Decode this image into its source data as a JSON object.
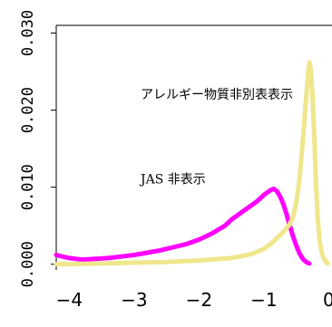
{
  "chart_data": {
    "type": "line",
    "title": "",
    "xlabel": "",
    "ylabel": "",
    "xlim": [
      -4.2,
      0.05
    ],
    "ylim": [
      -0.0005,
      0.031
    ],
    "x_ticks": [
      -4,
      -3,
      -2,
      -1,
      0
    ],
    "x_tick_labels": [
      "−4",
      "−3",
      "−2",
      "−1",
      "0"
    ],
    "y_ticks": [
      0.0,
      0.01,
      0.02,
      0.03
    ],
    "y_tick_labels": [
      "0.000",
      "0.010",
      "0.020",
      "0.030"
    ],
    "grid": false,
    "box": "partial",
    "annotations": [
      {
        "text": "アレルギー物質非別表表示",
        "x": -2.9,
        "y": 0.0215
      },
      {
        "text": "JAS 非表示",
        "x": -2.9,
        "y": 0.0105
      }
    ],
    "series": [
      {
        "name": "JAS 非表示",
        "color": "#ff00ff",
        "x": [
          -4.2,
          -4.0,
          -3.8,
          -3.6,
          -3.4,
          -3.2,
          -3.0,
          -2.8,
          -2.6,
          -2.4,
          -2.2,
          -2.0,
          -1.8,
          -1.6,
          -1.5,
          -1.4,
          -1.3,
          -1.2,
          -1.1,
          -1.0,
          -0.9,
          -0.85,
          -0.8,
          -0.75,
          -0.7,
          -0.65,
          -0.6,
          -0.55,
          -0.5,
          -0.45,
          -0.4,
          -0.35,
          -0.3
        ],
        "y": [
          0.0012,
          0.0008,
          0.0006,
          0.0007,
          0.0008,
          0.001,
          0.0012,
          0.0015,
          0.0018,
          0.0022,
          0.0026,
          0.0032,
          0.004,
          0.005,
          0.0058,
          0.0064,
          0.007,
          0.0076,
          0.0082,
          0.009,
          0.0096,
          0.0098,
          0.0095,
          0.0088,
          0.0078,
          0.0065,
          0.005,
          0.0036,
          0.0024,
          0.0014,
          0.0007,
          0.0003,
          0.0001
        ]
      },
      {
        "name": "アレルギー物質非別表表示",
        "color": "#f0e68c",
        "x": [
          -4.2,
          -3.5,
          -3.0,
          -2.5,
          -2.0,
          -1.5,
          -1.2,
          -1.0,
          -0.9,
          -0.8,
          -0.7,
          -0.6,
          -0.55,
          -0.5,
          -0.45,
          -0.4,
          -0.35,
          -0.32,
          -0.3,
          -0.28,
          -0.25,
          -0.22,
          -0.2,
          -0.17,
          -0.14,
          -0.1,
          -0.05,
          -0.02
        ],
        "y": [
          0.0,
          0.0001,
          0.0002,
          0.0003,
          0.0005,
          0.0008,
          0.0013,
          0.002,
          0.0026,
          0.0034,
          0.0042,
          0.0052,
          0.0062,
          0.008,
          0.011,
          0.016,
          0.0215,
          0.0245,
          0.0262,
          0.0255,
          0.022,
          0.016,
          0.011,
          0.006,
          0.003,
          0.0012,
          0.0004,
          0.0001
        ]
      }
    ]
  }
}
